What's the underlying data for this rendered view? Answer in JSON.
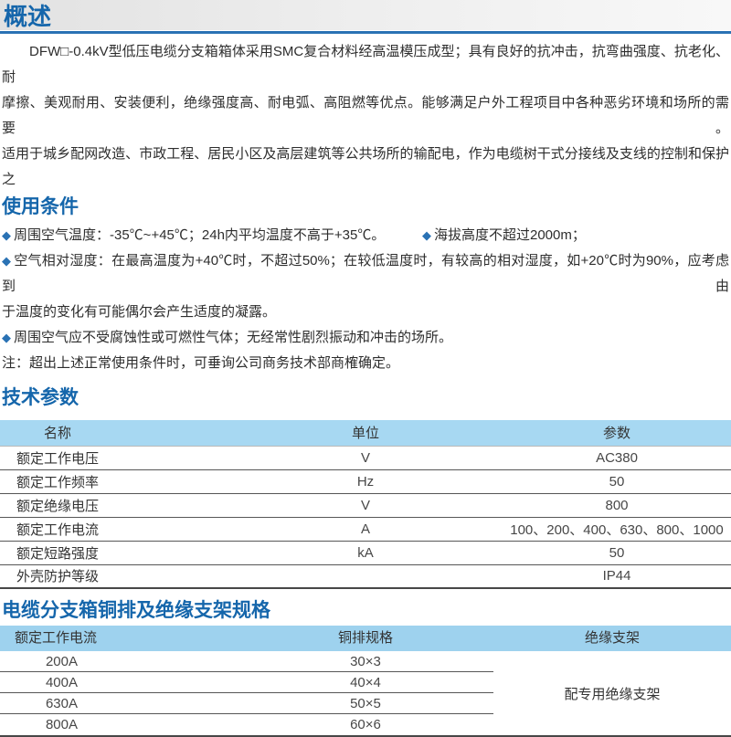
{
  "overview": {
    "title": "概述",
    "paragraph_lines": [
      "DFW□-0.4kV型低压电缆分支箱箱体采用SMC复合材料经高温模压成型；具有良好的抗冲击，抗弯曲强度、抗老化、耐",
      "摩擦、美观耐用、安装便利，绝缘强度高、耐电弧、高阻燃等优点。能够满足户外工程项目中各种恶劣环境和场所的需要。",
      "适用于城乡配网改造、市政工程、居民小区及高层建筑等公共场所的输配电，作为电缆树干式分接线及支线的控制和保护之"
    ]
  },
  "usage": {
    "title": "使用条件",
    "bullet_marker": "◆",
    "bullet1a": "周围空气温度：-35℃~+45℃；24h内平均温度不高于+35℃。",
    "bullet1b": "海拔高度不超过2000m；",
    "bullet2_line1": "空气相对湿度：在最高温度为+40℃时，不超过50%；在较低温度时，有较高的相对湿度，如+20℃时为90%，应考虑到由",
    "bullet2_line2": "于温度的变化有可能偶尔会产生适度的凝露。",
    "bullet3": "周围空气应不受腐蚀性或可燃性气体；无经常性剧烈振动和冲击的场所。",
    "note": "注：超出上述正常使用条件时，可垂询公司商务技术部商榷确定。"
  },
  "tech": {
    "title": "技术参数",
    "headers": [
      "名称",
      "单位",
      "参数"
    ],
    "rows": [
      {
        "name": "额定工作电压",
        "unit": "V",
        "value": "AC380"
      },
      {
        "name": "额定工作频率",
        "unit": "Hz",
        "value": "50"
      },
      {
        "name": "额定绝缘电压",
        "unit": "V",
        "value": "800"
      },
      {
        "name": "额定工作电流",
        "unit": "A",
        "value": "100、200、400、630、800、1000"
      },
      {
        "name": "额定短路强度",
        "unit": "kA",
        "value": "50"
      },
      {
        "name": "外壳防护等级",
        "unit": "",
        "value": "IP44"
      }
    ]
  },
  "busbar": {
    "title": "电缆分支箱铜排及绝缘支架规格",
    "headers": [
      "额定工作电流",
      "铜排规格",
      "绝缘支架"
    ],
    "rows": [
      {
        "current": "200A",
        "spec": "30×3"
      },
      {
        "current": "400A",
        "spec": "40×4"
      },
      {
        "current": "630A",
        "spec": "50×5"
      },
      {
        "current": "800A",
        "spec": "60×6"
      }
    ],
    "merged_cell": "配专用绝缘支架"
  },
  "colors": {
    "heading_blue": "#1566ab",
    "rule_blue": "#2a72b4",
    "bullet_blue": "#2a72b4",
    "table1_header_bg": "#a7d8f2",
    "table2_header_bg": "#9ed2ee",
    "titlebar_bg": "#e5e5e5"
  }
}
